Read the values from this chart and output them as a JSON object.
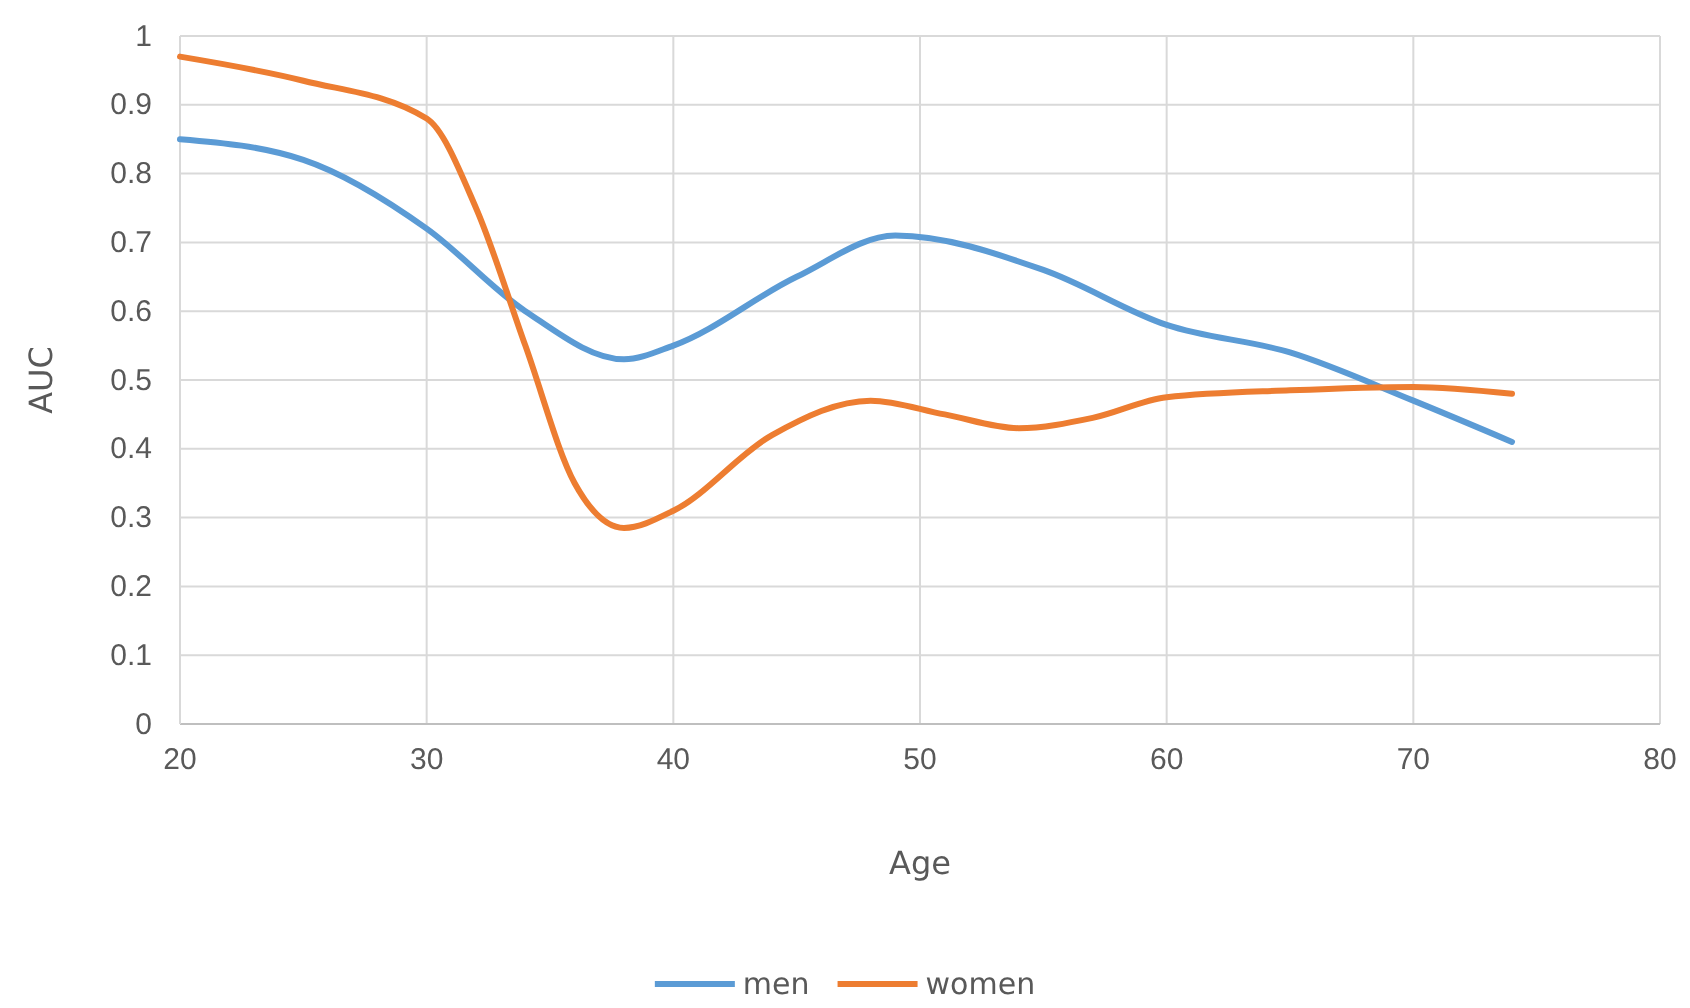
{
  "chart_data": {
    "type": "line",
    "xlabel": "Age",
    "ylabel": "AUC",
    "xlim": [
      20,
      80
    ],
    "xticks": [
      20,
      30,
      40,
      50,
      60,
      70,
      80
    ],
    "ylim": [
      0,
      1
    ],
    "yticks": [
      0,
      0.1,
      0.2,
      0.3,
      0.4,
      0.5,
      0.6,
      0.7,
      0.8,
      0.9,
      1
    ],
    "grid": true,
    "legend": "bottom",
    "marker": "none",
    "line_style": "solid",
    "series": [
      {
        "name": "men",
        "color": "#5b9bd5",
        "x": [
          20,
          25,
          30,
          34,
          38,
          40,
          45,
          49,
          55,
          60,
          65,
          70,
          74
        ],
        "values": [
          0.85,
          0.82,
          0.72,
          0.6,
          0.53,
          0.55,
          0.65,
          0.71,
          0.66,
          0.58,
          0.54,
          0.47,
          0.41
        ]
      },
      {
        "name": "women",
        "color": "#ed7d31",
        "x": [
          20,
          25,
          30,
          32,
          34,
          36,
          38,
          40,
          44,
          48,
          51,
          54,
          57,
          60,
          65,
          70,
          74
        ],
        "values": [
          0.97,
          0.935,
          0.88,
          0.75,
          0.55,
          0.35,
          0.285,
          0.31,
          0.42,
          0.47,
          0.45,
          0.43,
          0.445,
          0.475,
          0.485,
          0.49,
          0.48
        ]
      }
    ]
  }
}
